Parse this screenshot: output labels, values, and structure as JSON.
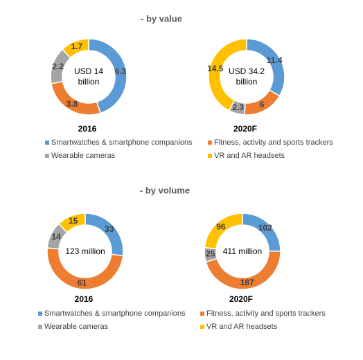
{
  "headings": [
    "- by value",
    "- by volume"
  ],
  "chart_data": [
    {
      "type": "donut",
      "title": "2016",
      "center_label": "USD 14 billion",
      "categories": [
        "Smartwatches & smartphone companions",
        "Fitness, activity and sports trackers",
        "Wearable cameras",
        "VR and AR headsets"
      ],
      "values": [
        6.3,
        3.8,
        2.2,
        1.7
      ],
      "colors": [
        "#5b9bd5",
        "#ed7d31",
        "#a5a5a5",
        "#ffc000"
      ]
    },
    {
      "type": "donut",
      "title": "2020F",
      "center_label": "USD 34.2 billion",
      "categories": [
        "Smartwatches & smartphone companions",
        "Fitness, activity and sports trackers",
        "Wearable cameras",
        "VR and AR headsets"
      ],
      "values": [
        11.4,
        6,
        2.3,
        14.5
      ],
      "colors": [
        "#5b9bd5",
        "#ed7d31",
        "#a5a5a5",
        "#ffc000"
      ]
    },
    {
      "type": "donut",
      "title": "2016",
      "center_label": "123 million",
      "categories": [
        "Smartwatches & smartphone companions",
        "Fitness, activity and sports trackers",
        "Wearable cameras",
        "VR and AR headsets"
      ],
      "values": [
        33,
        61,
        14,
        15
      ],
      "colors": [
        "#5b9bd5",
        "#ed7d31",
        "#a5a5a5",
        "#ffc000"
      ]
    },
    {
      "type": "donut",
      "title": "2020F",
      "center_label": "411 million",
      "categories": [
        "Smartwatches & smartphone companions",
        "Fitness, activity and sports trackers",
        "Wearable cameras",
        "VR and AR headsets"
      ],
      "values": [
        102,
        187,
        25,
        96
      ],
      "colors": [
        "#5b9bd5",
        "#ed7d31",
        "#a5a5a5",
        "#ffc000"
      ]
    }
  ]
}
